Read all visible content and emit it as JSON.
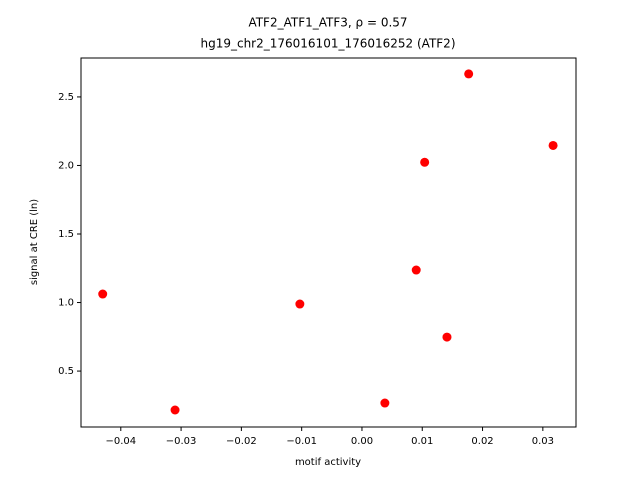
{
  "chart_data": {
    "type": "scatter",
    "title": "ATF2_ATF1_ATF3, ρ = 0.57",
    "subtitle": "hg19_chr2_176016101_176016252 (ATF2)",
    "x_label": "motif activity",
    "y_label": "signal at CRE (ln)",
    "color": "#ff0000",
    "x": [
      -0.043,
      -0.031,
      -0.0103,
      0.0038,
      0.009,
      0.0104,
      0.0141,
      0.0177,
      0.0317
    ],
    "y": [
      1.062,
      0.216,
      0.989,
      0.267,
      1.237,
      2.023,
      0.748,
      2.668,
      2.146
    ],
    "xlim": [
      -0.0466,
      0.0355
    ],
    "ylim": [
      0.092,
      2.784
    ],
    "xticks": [
      {
        "value": -0.04,
        "label": "−0.04"
      },
      {
        "value": -0.03,
        "label": "−0.03"
      },
      {
        "value": -0.02,
        "label": "−0.02"
      },
      {
        "value": -0.01,
        "label": "−0.01"
      },
      {
        "value": 0,
        "label": "0.00"
      },
      0.01,
      0.02,
      0.03
    ],
    "yticks": [
      0.5,
      {
        "value": 1,
        "label": "1.0"
      },
      1.5,
      {
        "value": 2,
        "label": "2.0"
      },
      2.5
    ]
  }
}
